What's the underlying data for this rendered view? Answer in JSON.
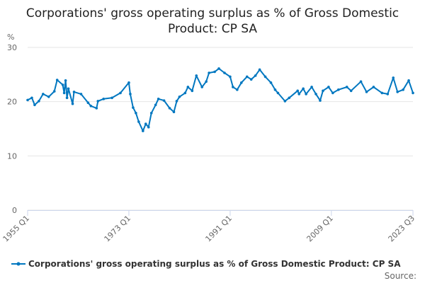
{
  "chart_data": {
    "type": "line",
    "title": "Corporations' gross operating surplus as % of Gross Domestic Product: CP SA",
    "ylabel": "%",
    "xlabel": "",
    "ylim": [
      0,
      30
    ],
    "yticks": [
      "0",
      "10",
      "20",
      "30"
    ],
    "xticks": [
      "1955 Q1",
      "1973 Q1",
      "1991 Q1",
      "2009 Q1",
      "2023 Q3"
    ],
    "grid": "horizontal",
    "legend_position": "bottom",
    "color": "#0077c0",
    "series": [
      {
        "name": "Corporations' gross operating surplus as % of Gross Domestic Product: CP SA",
        "points": [
          [
            "1955 Q1",
            20.3
          ],
          [
            "1955 Q4",
            20.7
          ],
          [
            "1956 Q2",
            19.4
          ],
          [
            "1957 Q1",
            20.1
          ],
          [
            "1957 Q4",
            21.4
          ],
          [
            "1958 Q4",
            20.9
          ],
          [
            "1959 Q4",
            21.9
          ],
          [
            "1960 Q2",
            24.0
          ],
          [
            "1961 Q2",
            23.1
          ],
          [
            "1961 Q3",
            21.6
          ],
          [
            "1961 Q4",
            23.9
          ],
          [
            "1962 Q1",
            20.7
          ],
          [
            "1962 Q2",
            22.4
          ],
          [
            "1963 Q1",
            19.6
          ],
          [
            "1963 Q2",
            21.8
          ],
          [
            "1964 Q3",
            21.4
          ],
          [
            "1965 Q4",
            19.8
          ],
          [
            "1966 Q2",
            19.2
          ],
          [
            "1967 Q2",
            18.8
          ],
          [
            "1967 Q3",
            20.1
          ],
          [
            "1968 Q3",
            20.5
          ],
          [
            "1970 Q1",
            20.7
          ],
          [
            "1971 Q3",
            21.6
          ],
          [
            "1973 Q1",
            23.5
          ],
          [
            "1973 Q2",
            21.4
          ],
          [
            "1973 Q4",
            18.9
          ],
          [
            "1974 Q2",
            17.9
          ],
          [
            "1974 Q4",
            16.3
          ],
          [
            "1975 Q3",
            14.6
          ],
          [
            "1976 Q1",
            15.9
          ],
          [
            "1976 Q3",
            15.3
          ],
          [
            "1977 Q1",
            17.9
          ],
          [
            "1977 Q4",
            19.4
          ],
          [
            "1978 Q2",
            20.5
          ],
          [
            "1979 Q2",
            20.2
          ],
          [
            "1980 Q2",
            18.8
          ],
          [
            "1981 Q1",
            18.1
          ],
          [
            "1981 Q3",
            20.1
          ],
          [
            "1982 Q1",
            20.9
          ],
          [
            "1983 Q1",
            21.6
          ],
          [
            "1983 Q3",
            22.7
          ],
          [
            "1984 Q2",
            22.0
          ],
          [
            "1985 Q1",
            24.8
          ],
          [
            "1986 Q1",
            22.7
          ],
          [
            "1986 Q4",
            23.7
          ],
          [
            "1987 Q2",
            25.3
          ],
          [
            "1988 Q2",
            25.5
          ],
          [
            "1989 Q1",
            26.1
          ],
          [
            "1990 Q1",
            25.3
          ],
          [
            "1991 Q1",
            24.6
          ],
          [
            "1991 Q3",
            22.7
          ],
          [
            "1992 Q2",
            22.2
          ],
          [
            "1993 Q1",
            23.5
          ],
          [
            "1994 Q1",
            24.6
          ],
          [
            "1994 Q4",
            24.1
          ],
          [
            "1995 Q3",
            24.8
          ],
          [
            "1996 Q2",
            25.9
          ],
          [
            "1997 Q2",
            24.6
          ],
          [
            "1998 Q2",
            23.5
          ],
          [
            "1999 Q1",
            22.2
          ],
          [
            "1999 Q3",
            21.6
          ],
          [
            "2000 Q4",
            20.1
          ],
          [
            "2001 Q3",
            20.7
          ],
          [
            "2003 Q1",
            22.0
          ],
          [
            "2003 Q2",
            21.4
          ],
          [
            "2004 Q1",
            22.4
          ],
          [
            "2004 Q3",
            21.4
          ],
          [
            "2005 Q3",
            22.7
          ],
          [
            "2006 Q2",
            21.4
          ],
          [
            "2007 Q1",
            20.2
          ],
          [
            "2007 Q3",
            22.0
          ],
          [
            "2008 Q3",
            22.7
          ],
          [
            "2009 Q2",
            21.6
          ],
          [
            "2010 Q2",
            22.2
          ],
          [
            "2011 Q4",
            22.7
          ],
          [
            "2012 Q3",
            22.0
          ],
          [
            "2014 Q2",
            23.7
          ],
          [
            "2015 Q2",
            21.8
          ],
          [
            "2016 Q3",
            22.7
          ],
          [
            "2018 Q1",
            21.6
          ],
          [
            "2019 Q1",
            21.4
          ],
          [
            "2020 Q1",
            24.4
          ],
          [
            "2020 Q4",
            21.8
          ],
          [
            "2021 Q4",
            22.2
          ],
          [
            "2022 Q4",
            23.9
          ],
          [
            "2023 Q3",
            21.6
          ]
        ]
      }
    ]
  },
  "source_label": "Source:"
}
